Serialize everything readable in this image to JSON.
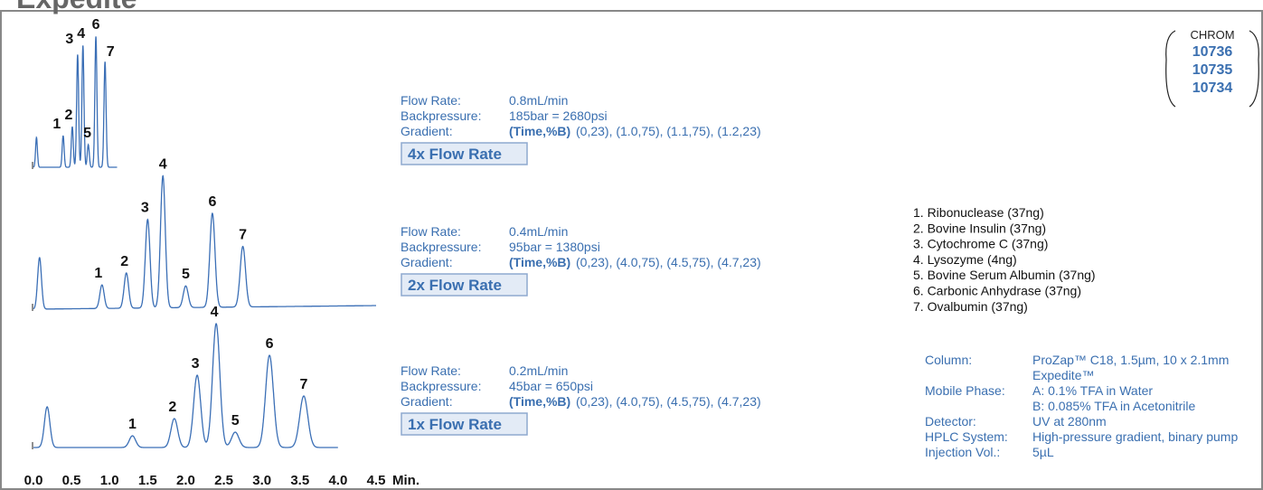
{
  "title": "Expedite",
  "chrom": {
    "label": "CHROM",
    "ids": [
      "10736",
      "10735",
      "10734"
    ]
  },
  "chart_data": {
    "type": "line",
    "xlabel": "Min.",
    "xlim": [
      0,
      4.5
    ],
    "xticks": [
      {
        "value": 0,
        "label": "0.0"
      },
      0.5,
      {
        "value": 1,
        "label": "1.0"
      },
      1.5,
      {
        "value": 2,
        "label": "2.0"
      },
      2.5,
      {
        "value": 3,
        "label": "3.0"
      },
      3.5,
      {
        "value": 4,
        "label": "4.0"
      },
      4.5
    ],
    "color": "#3b6fb6",
    "series": [
      {
        "name": "4x Flow Rate",
        "peaks": [
          {
            "label": null,
            "time": 0.04,
            "intensity": 33
          },
          {
            "label": "1",
            "time": 0.39,
            "intensity": 35
          },
          {
            "label": "2",
            "time": 0.51,
            "intensity": 45
          },
          {
            "label": "3",
            "time": 0.58,
            "intensity": 125
          },
          {
            "label": "4",
            "time": 0.65,
            "intensity": 135
          },
          {
            "label": "5",
            "time": 0.72,
            "intensity": 25
          },
          {
            "label": "6",
            "time": 0.82,
            "intensity": 145
          },
          {
            "label": "7",
            "time": 0.94,
            "intensity": 117
          }
        ]
      },
      {
        "name": "2x Flow Rate",
        "peaks": [
          {
            "label": null,
            "time": 0.08,
            "intensity": 57
          },
          {
            "label": "1",
            "time": 0.9,
            "intensity": 26
          },
          {
            "label": "2",
            "time": 1.22,
            "intensity": 39
          },
          {
            "label": "3",
            "time": 1.5,
            "intensity": 98
          },
          {
            "label": "4",
            "time": 1.7,
            "intensity": 146
          },
          {
            "label": "5",
            "time": 2.0,
            "intensity": 24
          },
          {
            "label": "6",
            "time": 2.35,
            "intensity": 104
          },
          {
            "label": "7",
            "time": 2.75,
            "intensity": 67
          }
        ]
      },
      {
        "name": "1x Flow Rate",
        "peaks": [
          {
            "label": null,
            "time": 0.18,
            "intensity": 45
          },
          {
            "label": "1",
            "time": 1.3,
            "intensity": 13
          },
          {
            "label": "2",
            "time": 1.85,
            "intensity": 32
          },
          {
            "label": "3",
            "time": 2.15,
            "intensity": 80
          },
          {
            "label": "4",
            "time": 2.4,
            "intensity": 137
          },
          {
            "label": "5",
            "time": 2.65,
            "intensity": 17
          },
          {
            "label": "6",
            "time": 3.1,
            "intensity": 102
          },
          {
            "label": "7",
            "time": 3.55,
            "intensity": 57
          }
        ]
      }
    ]
  },
  "methods": [
    {
      "rows": [
        [
          "Flow Rate:",
          "0.8mL/min"
        ],
        [
          "Backpressure:",
          "185bar = 2680psi"
        ],
        [
          "Gradient:",
          "(Time,%B)",
          "(0,23), (1.0,75), (1.1,75), (1.2,23)"
        ]
      ]
    },
    {
      "rows": [
        [
          "Flow Rate:",
          "0.4mL/min"
        ],
        [
          "Backpressure:",
          "95bar = 1380psi"
        ],
        [
          "Gradient:",
          "(Time,%B)",
          "(0,23), (4.0,75), (4.5,75), (4.7,23)"
        ]
      ]
    },
    {
      "rows": [
        [
          "Flow Rate:",
          "0.2mL/min"
        ],
        [
          "Backpressure:",
          "45bar = 650psi"
        ],
        [
          "Gradient:",
          "(Time,%B)",
          "(0,23), (4.0,75), (4.5,75), (4.7,23)"
        ]
      ]
    }
  ],
  "compounds": [
    "1. Ribonuclease  (37ng)",
    "2. Bovine Insulin  (37ng)",
    "3. Cytochrome C  (37ng)",
    "4. Lysozyme  (4ng)",
    "5. Bovine Serum Albumin  (37ng)",
    "6. Carbonic Anhydrase  (37ng)",
    "7. Ovalbumin  (37ng)"
  ],
  "conditions": [
    {
      "label": "Column:",
      "lines": [
        "ProZap™ C18, 1.5µm, 10 x 2.1mm",
        "Expedite™"
      ]
    },
    {
      "label": "Mobile Phase:",
      "lines": [
        "A: 0.1% TFA in Water",
        "B: 0.085% TFA in Acetonitrile"
      ]
    },
    {
      "label": "Detector:",
      "lines": [
        "UV at 280nm"
      ]
    },
    {
      "label": "HPLC System:",
      "lines": [
        "High-pressure gradient, binary pump"
      ]
    },
    {
      "label": "Injection Vol.:",
      "lines": [
        "5µL"
      ]
    }
  ]
}
